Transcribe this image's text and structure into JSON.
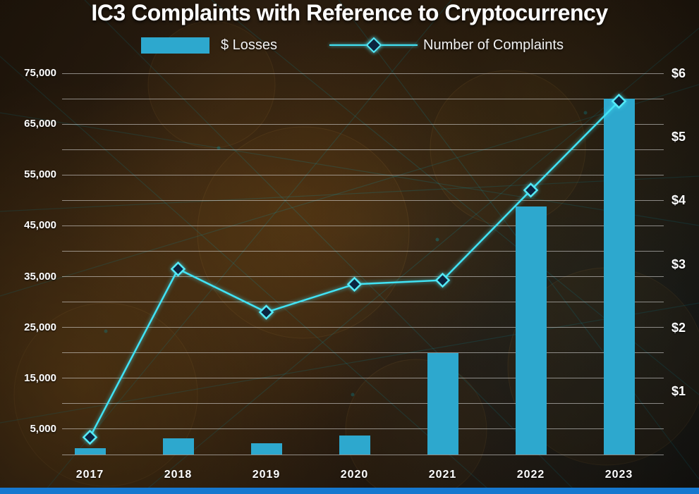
{
  "colors": {
    "bar": "#2da8ce",
    "line": "#41e3f5",
    "marker_fill": "#0c2440",
    "marker_stroke": "#55eaf8",
    "grid": "#e6e6e6",
    "text": "#ffffff",
    "bottom_strip": "#1678cf"
  },
  "chart_data": {
    "type": "combo",
    "title": "IC3 Complaints with Reference to Cryptocurrency",
    "categories": [
      "2017",
      "2018",
      "2019",
      "2020",
      "2021",
      "2022",
      "2023"
    ],
    "series": [
      {
        "name": "$ Losses",
        "type": "bar",
        "axis": "right",
        "unit": "USD billions",
        "values": [
          0.1,
          0.25,
          0.18,
          0.3,
          1.6,
          3.9,
          5.6
        ]
      },
      {
        "name": "Number of Complaints",
        "type": "line",
        "axis": "left",
        "marker": "diamond",
        "values": [
          3400,
          36500,
          28000,
          33500,
          34300,
          52000,
          69500
        ]
      }
    ],
    "left_axis": {
      "tick_labels": [
        "75,000",
        "65,000",
        "55,000",
        "45,000",
        "35,000",
        "25,000",
        "15,000",
        "5,000"
      ],
      "max": 75000,
      "grid_step": 5000,
      "grid": true
    },
    "right_axis": {
      "tick_labels": [
        "$6",
        "$5",
        "$4",
        "$3",
        "$2",
        "$1"
      ],
      "max": 6
    },
    "legend": [
      {
        "label": "$ Losses",
        "swatch": "bar"
      },
      {
        "label": "Number of Complaints",
        "swatch": "line-diamond"
      }
    ],
    "legend_position": "top"
  }
}
